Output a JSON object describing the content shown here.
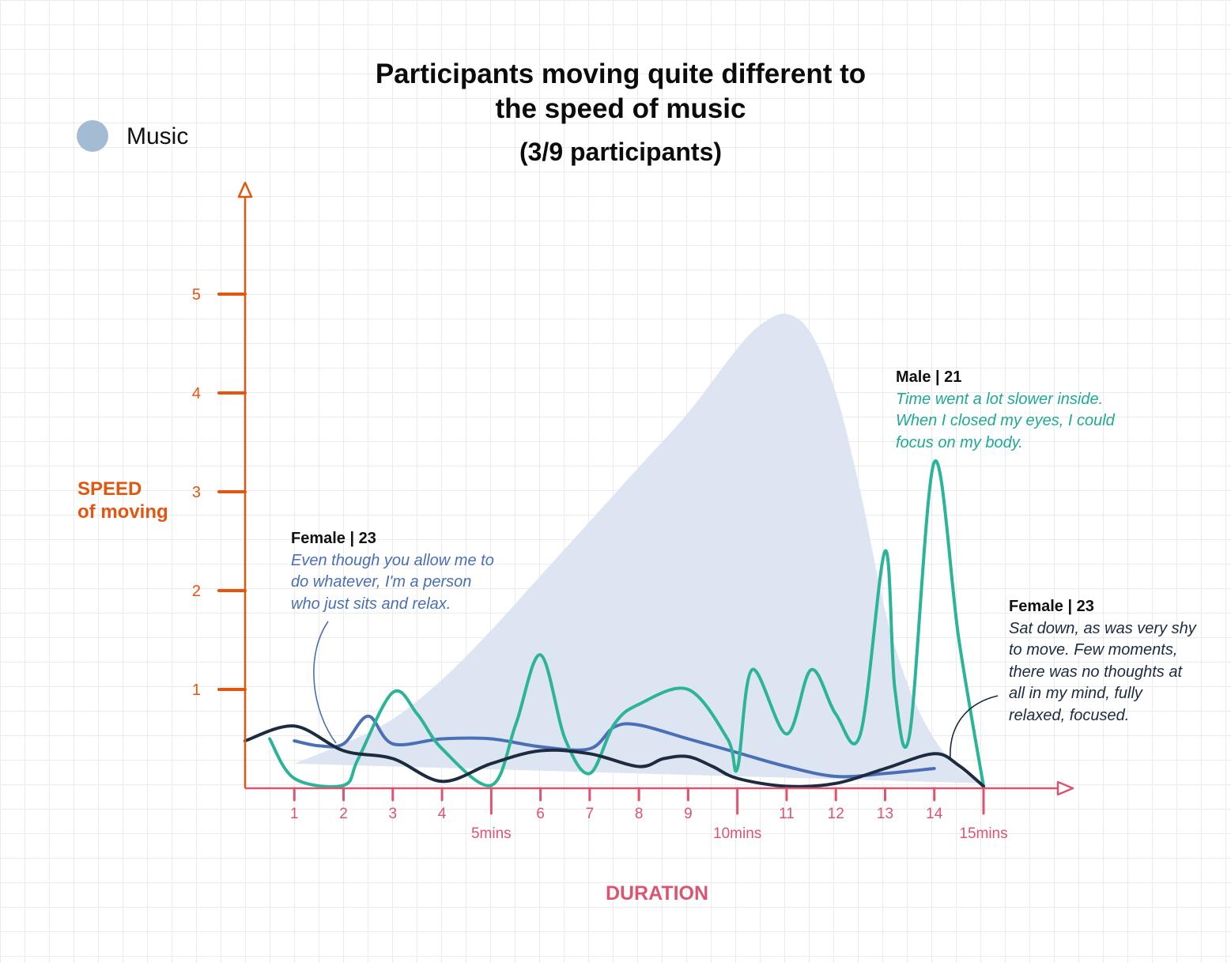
{
  "title": {
    "line1": "Participants moving quite different to",
    "line2": "the speed of music",
    "subtitle": "(3/9 participants)"
  },
  "legend": [
    {
      "label": "Music",
      "color": "#a3bcd3"
    }
  ],
  "colors": {
    "y_axis": "#e2560f",
    "x_axis": "#db5570",
    "music_area": "#dbe3f1",
    "female1": "#4a6fb5",
    "male": "#2bb498",
    "female2": "#1c2b40"
  },
  "chart_data": {
    "type": "line",
    "ylabel": [
      "SPEED",
      "of moving"
    ],
    "xlabel": "DURATION",
    "xlim": [
      0,
      16
    ],
    "ylim": [
      0,
      5.7
    ],
    "y_ticks": [
      1,
      2,
      3,
      4,
      5
    ],
    "x_ticks": [
      {
        "x": 1,
        "label": "1",
        "major": false
      },
      {
        "x": 2,
        "label": "2",
        "major": false
      },
      {
        "x": 3,
        "label": "3",
        "major": false
      },
      {
        "x": 4,
        "label": "4",
        "major": false
      },
      {
        "x": 5,
        "label": "5mins",
        "major": true
      },
      {
        "x": 6,
        "label": "6",
        "major": false
      },
      {
        "x": 7,
        "label": "7",
        "major": false
      },
      {
        "x": 8,
        "label": "8",
        "major": false
      },
      {
        "x": 9,
        "label": "9",
        "major": false
      },
      {
        "x": 10,
        "label": "10mins",
        "major": true
      },
      {
        "x": 11,
        "label": "11",
        "major": false
      },
      {
        "x": 12,
        "label": "12",
        "major": false
      },
      {
        "x": 13,
        "label": "13",
        "major": false
      },
      {
        "x": 14,
        "label": "14",
        "major": false
      },
      {
        "x": 15,
        "label": "15mins",
        "major": true
      }
    ],
    "series": [
      {
        "name": "Music",
        "kind": "area",
        "color": "#dbe3f1",
        "x": [
          1,
          2,
          3,
          4,
          5,
          6,
          7,
          8,
          9,
          10,
          10.5,
          11,
          11.5,
          12,
          12.5,
          13,
          13.5,
          14,
          14.5,
          15
        ],
        "y": [
          0.25,
          0.45,
          0.7,
          1.1,
          1.6,
          2.15,
          2.7,
          3.25,
          3.8,
          4.45,
          4.7,
          4.8,
          4.6,
          4.0,
          3.0,
          1.8,
          1.0,
          0.5,
          0.2,
          0.05
        ],
        "baseline": {
          "x": [
            1,
            15
          ],
          "y": [
            0.25,
            0.05
          ]
        }
      },
      {
        "kind": "line",
        "color": "#4a6fb5",
        "x": [
          1,
          1.5,
          2,
          2.5,
          3,
          4,
          5,
          6,
          7,
          7.5,
          8,
          9,
          10,
          11,
          12,
          13,
          14
        ],
        "y": [
          0.48,
          0.43,
          0.45,
          0.73,
          0.45,
          0.5,
          0.5,
          0.42,
          0.4,
          0.62,
          0.64,
          0.5,
          0.36,
          0.22,
          0.12,
          0.15,
          0.2
        ]
      },
      {
        "kind": "line",
        "color": "#2bb498",
        "x": [
          0.5,
          1,
          2,
          2.3,
          3,
          3.5,
          4,
          5,
          5.5,
          6,
          6.5,
          7,
          7.5,
          8,
          9,
          9.8,
          10,
          10.3,
          11,
          11.5,
          12,
          12.5,
          13,
          13.2,
          13.5,
          14,
          14.5,
          15
        ],
        "y": [
          0.5,
          0.1,
          0.03,
          0.3,
          0.97,
          0.75,
          0.4,
          0.03,
          0.65,
          1.35,
          0.5,
          0.15,
          0.65,
          0.85,
          1.0,
          0.5,
          0.2,
          1.2,
          0.55,
          1.2,
          0.75,
          0.55,
          2.4,
          1.0,
          0.55,
          3.3,
          1.5,
          0.02
        ]
      },
      {
        "kind": "line",
        "color": "#1c2b40",
        "x": [
          0,
          1,
          2,
          3,
          4,
          5,
          6,
          7,
          8,
          8.5,
          9,
          9.5,
          10,
          11,
          12,
          13,
          14,
          14.5,
          15
        ],
        "y": [
          0.48,
          0.63,
          0.38,
          0.3,
          0.07,
          0.25,
          0.38,
          0.35,
          0.22,
          0.3,
          0.32,
          0.22,
          0.1,
          0.02,
          0.05,
          0.2,
          0.35,
          0.23,
          0.02
        ]
      }
    ]
  },
  "annotations": [
    {
      "who": "Female | 23",
      "quote_lines": [
        "Even though you allow me to",
        "do whatever, I'm a person",
        "who just sits and relax."
      ]
    },
    {
      "who": "Male | 21",
      "quote_lines": [
        "Time went a lot slower inside.",
        "When I closed my eyes, I could",
        "focus on my body."
      ]
    },
    {
      "who": "Female | 23",
      "quote_lines": [
        "Sat down, as was very shy",
        "to move. Few moments,",
        "there was no thoughts at",
        "all in my mind, fully",
        "relaxed, focused."
      ]
    }
  ]
}
